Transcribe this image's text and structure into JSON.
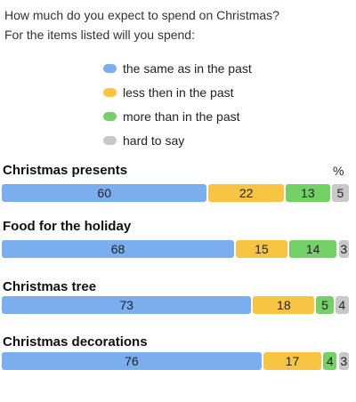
{
  "chart_data": {
    "type": "bar",
    "orientation": "horizontal",
    "stacked": true,
    "title": "How much do you expect to spend on Christmas?",
    "subtitle": "For the items listed will you spend:",
    "unit": "%",
    "legend_position": "top",
    "categories": [
      "Christmas presents",
      "Food for the holiday",
      "Christmas tree",
      "Christmas decorations"
    ],
    "series": [
      {
        "name": "the same as in the past",
        "color": "#7aaeef",
        "values": [
          60,
          68,
          73,
          76
        ]
      },
      {
        "name": "less then in the past",
        "color": "#f7c443",
        "values": [
          22,
          15,
          18,
          17
        ]
      },
      {
        "name": "more than in the past",
        "color": "#74d166",
        "values": [
          13,
          14,
          5,
          4
        ]
      },
      {
        "name": "hard to say",
        "color": "#c8c8c8",
        "values": [
          5,
          3,
          4,
          3
        ]
      }
    ]
  }
}
